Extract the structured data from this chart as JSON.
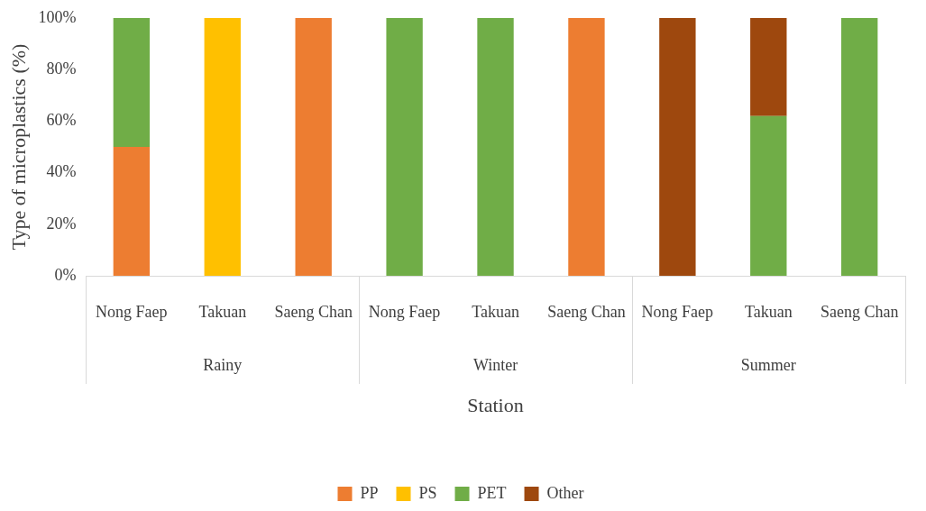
{
  "chart_data": {
    "type": "bar",
    "stacked": true,
    "xlabel": "Station",
    "ylabel": "Type of microplastics (%)",
    "categories": [
      "Nong Faep",
      "Takuan",
      "Saeng Chan",
      "Nong Faep",
      "Takuan",
      "Saeng Chan",
      "Nong Faep",
      "Takuan",
      "Saeng Chan"
    ],
    "annotations": [
      "Rainy",
      "Winter",
      "Summer"
    ],
    "series": [
      {
        "name": "PP",
        "color": "#ed7d31",
        "values": [
          50,
          null,
          100,
          null,
          null,
          100,
          null,
          null,
          null
        ]
      },
      {
        "name": "PS",
        "color": "#ffc000",
        "values": [
          null,
          100,
          null,
          null,
          null,
          null,
          null,
          null,
          null
        ]
      },
      {
        "name": "PET",
        "color": "#70ad47",
        "values": [
          50,
          null,
          null,
          100,
          100,
          null,
          null,
          62,
          100
        ]
      },
      {
        "name": "Other",
        "color": "#9e480e",
        "values": [
          null,
          null,
          null,
          null,
          null,
          null,
          100,
          38,
          null
        ]
      }
    ],
    "ylim": [
      0,
      100
    ],
    "yticks": [
      {
        "value": 0,
        "label": "0%"
      },
      {
        "value": 20,
        "label": "20%"
      },
      {
        "value": 40,
        "label": "40%"
      },
      {
        "value": 60,
        "label": "60%"
      },
      {
        "value": 80,
        "label": "80%"
      },
      {
        "value": 100,
        "label": "100%"
      }
    ],
    "grid": false,
    "legend": "bottom"
  }
}
